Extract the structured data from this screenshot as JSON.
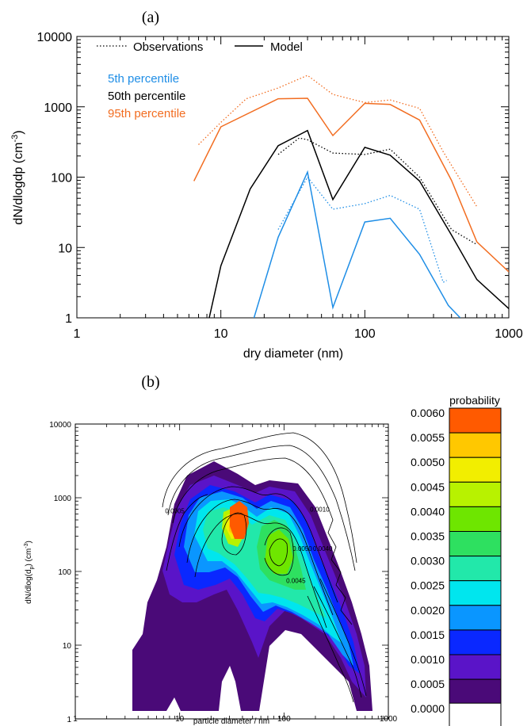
{
  "chart_data": [
    {
      "type": "line",
      "panel_label": "(a)",
      "xlabel": "dry diameter (nm)",
      "ylabel_main": "dN/dlogdp (cm",
      "ylabel_sup": "-3",
      "ylabel_tail": ")",
      "x_scale": "log",
      "y_scale": "log",
      "xlim": [
        1,
        1000
      ],
      "ylim": [
        1,
        10000
      ],
      "xticks": [
        {
          "value": 1,
          "label": "1"
        },
        {
          "value": 10,
          "label": "10"
        },
        {
          "value": 100,
          "label": "100"
        },
        {
          "value": 1000,
          "label": "1000"
        }
      ],
      "yticks": [
        {
          "value": 1,
          "label": "1"
        },
        {
          "value": 10,
          "label": "10"
        },
        {
          "value": 100,
          "label": "100"
        },
        {
          "value": 1000,
          "label": "1000"
        },
        {
          "value": 10000,
          "label": "10000"
        }
      ],
      "legend": {
        "observations": "Observations",
        "model": "Model",
        "p5": "5th percentile",
        "p50": "50th percentile",
        "p95": "95th percentile"
      },
      "colors": {
        "p5": "#1f8ee6",
        "p50": "#000000",
        "p95": "#f26d21"
      },
      "series": [
        {
          "key": "p95",
          "kind": "model",
          "x": [
            6.5,
            10,
            25,
            40,
            60,
            100,
            150,
            240,
            400,
            600,
            1000
          ],
          "y": [
            88,
            520,
            1300,
            1320,
            390,
            1120,
            1080,
            650,
            90,
            12,
            4.5
          ]
        },
        {
          "key": "p95",
          "kind": "obs",
          "x": [
            7,
            10,
            15,
            25,
            40,
            60,
            100,
            150,
            240,
            350,
            600
          ],
          "y": [
            290,
            600,
            1300,
            1850,
            2800,
            1500,
            1150,
            1250,
            950,
            230,
            38
          ]
        },
        {
          "key": "p50",
          "kind": "model",
          "x": [
            8.3,
            10,
            16,
            25,
            40,
            60,
            100,
            150,
            240,
            400,
            600,
            1000
          ],
          "y": [
            1,
            5.5,
            68,
            280,
            460,
            48,
            265,
            205,
            88,
            15,
            3.5,
            1.35
          ]
        },
        {
          "key": "p50",
          "kind": "obs",
          "x": [
            25,
            35,
            40,
            60,
            100,
            150,
            240,
            400,
            600
          ],
          "y": [
            210,
            360,
            340,
            220,
            210,
            250,
            100,
            18,
            11
          ]
        },
        {
          "key": "p5",
          "kind": "model",
          "x": [
            17,
            25,
            40,
            60,
            100,
            150,
            240,
            380,
            460
          ],
          "y": [
            1,
            14,
            118,
            1.4,
            23,
            26,
            8,
            1.5,
            1
          ]
        },
        {
          "key": "p5",
          "kind": "obs",
          "x": [
            25,
            40,
            60,
            100,
            150,
            240,
            350,
            370
          ],
          "y": [
            18,
            100,
            35,
            42,
            55,
            35,
            3.2,
            3.4
          ]
        }
      ]
    },
    {
      "type": "heatmap",
      "panel_label": "(b)",
      "xlabel": "particle diameter / nm",
      "ylabel_main": "dN/dlog(d",
      "ylabel_sub": "p",
      "ylabel_mid": ") (cm",
      "ylabel_sup": "-3",
      "ylabel_tail": ")",
      "x_scale": "log",
      "y_scale": "log",
      "xlim": [
        1,
        1000
      ],
      "ylim": [
        1,
        10000
      ],
      "xticks": [
        {
          "value": 1,
          "label": "1"
        },
        {
          "value": 10,
          "label": "10"
        },
        {
          "value": 100,
          "label": "100"
        },
        {
          "value": 1000,
          "label": "1000"
        }
      ],
      "yticks": [
        {
          "value": 1,
          "label": "1"
        },
        {
          "value": 10,
          "label": "10"
        },
        {
          "value": 100,
          "label": "100"
        },
        {
          "value": 1000,
          "label": "1000"
        },
        {
          "value": 10000,
          "label": "10000"
        }
      ],
      "colorbar": {
        "title": "probability",
        "labels": [
          "0.0060",
          "0.0055",
          "0.0050",
          "0.0045",
          "0.0040",
          "0.0035",
          "0.0030",
          "0.0025",
          "0.0020",
          "0.0015",
          "0.0010",
          "0.0005",
          "0.0000"
        ],
        "colors": [
          "#ff5a00",
          "#ffc800",
          "#f2ee00",
          "#b8f200",
          "#6ee600",
          "#2ee060",
          "#22e8aa",
          "#00e6ee",
          "#0a96ff",
          "#0a28ff",
          "#5a14c8",
          "#4a0a78",
          "#ffffff"
        ]
      },
      "contour_labels": [
        {
          "text": "0.0005",
          "x": 9,
          "y": 620
        },
        {
          "text": "0.0010",
          "x": 220,
          "y": 650
        },
        {
          "text": "0.0050",
          "x": 150,
          "y": 190
        },
        {
          "text": "0.0045",
          "x": 130,
          "y": 70
        },
        {
          "text": "0.0040",
          "x": 235,
          "y": 190
        }
      ]
    }
  ]
}
